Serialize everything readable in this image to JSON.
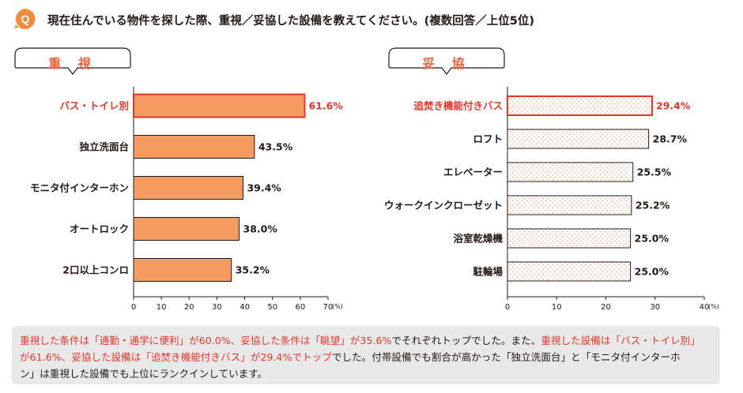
{
  "question": {
    "badge": "Q",
    "text": "現在住んでいる物件を探した際、重視／妥協した設備を教えてください。(複数回答／上位5位)"
  },
  "colors": {
    "accent": "#e8603c",
    "bar_fill": "#f39b61",
    "bar_border": "#231815",
    "highlight_red": "#e5352b",
    "dot_fill": "#f2a27a",
    "summary_bg": "#e9e9e9"
  },
  "chart_data": [
    {
      "type": "bar",
      "orientation": "horizontal",
      "title": "重 視",
      "categories": [
        "バス・トイレ別",
        "独立洗面台",
        "モニタ付インターホン",
        "オートロック",
        "2口以上コンロ"
      ],
      "values": [
        61.6,
        43.5,
        39.4,
        38.0,
        35.2
      ],
      "value_labels": [
        "61.6%",
        "43.5%",
        "39.4%",
        "38.0%",
        "35.2%"
      ],
      "highlight_index": 0,
      "xlim": [
        0,
        70
      ],
      "xticks": [
        "0",
        "10",
        "20",
        "30",
        "40",
        "50",
        "60",
        "70"
      ],
      "unit": "(%)",
      "fill": "solid"
    },
    {
      "type": "bar",
      "orientation": "horizontal",
      "title": "妥 協",
      "categories": [
        "追焚き機能付きバス",
        "ロフト",
        "エレベーター",
        "ウォークインクローゼット",
        "浴室乾燥機",
        "駐輪場"
      ],
      "values": [
        29.4,
        28.7,
        25.5,
        25.2,
        25.0,
        25.0
      ],
      "value_labels": [
        "29.4%",
        "28.7%",
        "25.5%",
        "25.2%",
        "25.0%",
        "25.0%"
      ],
      "highlight_index": 0,
      "xlim": [
        0,
        40
      ],
      "xticks": [
        "0",
        "10",
        "20",
        "30",
        "40"
      ],
      "unit": "(%)",
      "fill": "dotted"
    }
  ],
  "summary": {
    "line1": [
      {
        "t": "重視した条件は「通勤・通学に便利」が60.0%、妥協した条件は「眺望」が35.6%",
        "hl": true
      },
      {
        "t": "でそれぞれトップでした。また、",
        "hl": false
      },
      {
        "t": "重視した設備は「バス・トイレ別」",
        "hl": true
      }
    ],
    "line2": [
      {
        "t": "が61.6%、妥協した設備は「追焚き機能付きバス」が29.4%でトップ",
        "hl": true
      },
      {
        "t": "でした。付帯設備でも割合が高かった「独立洗面台」と「モニタ付インターホ",
        "hl": false
      }
    ],
    "line3": [
      {
        "t": "ン」は重視した設備でも上位にランクインしています。",
        "hl": false
      }
    ]
  }
}
